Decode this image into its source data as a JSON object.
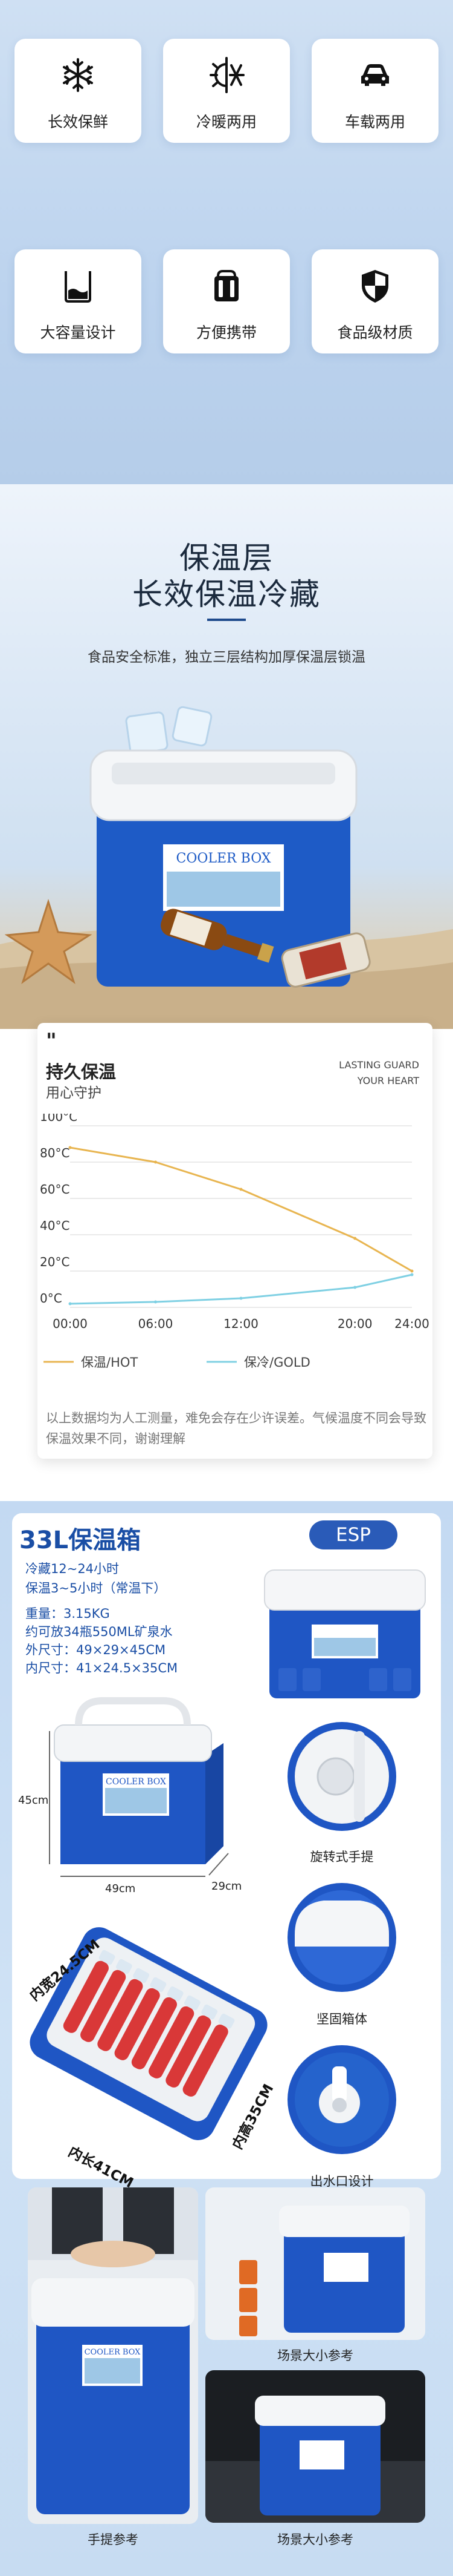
{
  "features": [
    {
      "label": "长效保鲜",
      "icon": "snowflake-icon"
    },
    {
      "label": "冷暖两用",
      "icon": "sun-snow-icon"
    },
    {
      "label": "车载两用",
      "icon": "car-icon"
    },
    {
      "label": "大容量设计",
      "icon": "container-icon"
    },
    {
      "label": "方便携带",
      "icon": "cooler-carry-icon"
    },
    {
      "label": "食品级材质",
      "icon": "shield-icon"
    }
  ],
  "hero": {
    "title_line1": "保温层",
    "title_line2": "长效保温冷藏",
    "subtitle": "食品安全标准，独立三层结构加厚保温层锁温",
    "box_label": "COOLER BOX",
    "accent": "#1e5bc6"
  },
  "insulation_card": {
    "quote_mark": "\"",
    "title": "持久保温",
    "subtitle": "用心守护",
    "english_line1": "LASTING GUARD",
    "english_line2": "YOUR HEART",
    "note": "以上数据均为人工测量，难免会存在少许误差。气候温度不同会导致保温效果不同，谢谢理解"
  },
  "chart_data": {
    "type": "line",
    "x": [
      "00:00",
      "06:00",
      "12:00",
      "20:00",
      "24:00"
    ],
    "ylim": [
      0,
      100
    ],
    "y_ticks": [
      "0°C",
      "20°C",
      "40°C",
      "60°C",
      "80°C",
      "100°C"
    ],
    "series": [
      {
        "name": "保温/HOT",
        "color": "#e8b550",
        "x_hours": [
          0,
          6,
          12,
          20,
          24
        ],
        "values": [
          88,
          80,
          65,
          38,
          20
        ]
      },
      {
        "name": "保冷/GOLD",
        "color": "#7fd0e3",
        "x_hours": [
          0,
          6,
          12,
          20,
          24
        ],
        "values": [
          2,
          3,
          5,
          11,
          18
        ]
      }
    ],
    "grid": true,
    "legend_position": "bottom-left"
  },
  "product": {
    "title": "33L保温箱",
    "badge": "ESP",
    "spec_lines": [
      "冷藏12~24小时",
      "保温3~5小时（常温下）",
      "重量：3.15KG",
      "约可放34瓶550ML矿泉水",
      "外尺寸：49×29×45CM",
      "内尺寸：41×24.5×35CM"
    ],
    "dim_height": "45cm",
    "dim_length": "49cm",
    "dim_width": "29cm",
    "inner_width": "内宽24.5CM",
    "inner_length": "内长41CM",
    "inner_height": "内高35CM",
    "feature_captions": [
      "旋转式手提",
      "坚固箱体",
      "出水口设计"
    ],
    "photo_captions": [
      "手提参考",
      "场景大小参考",
      "场景大小参考"
    ],
    "box_label": "COOLER BOX",
    "blue": "#1f56c4"
  }
}
